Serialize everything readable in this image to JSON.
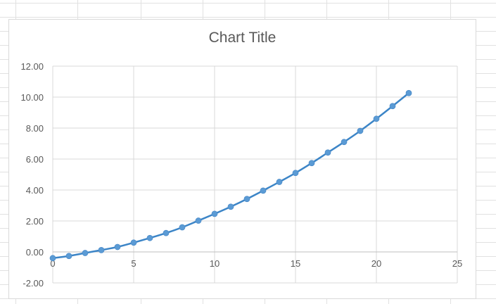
{
  "chart_data": {
    "type": "scatter",
    "title": "Chart Title",
    "xlabel": "",
    "ylabel": "",
    "xlim": [
      0,
      25
    ],
    "ylim": [
      -2,
      12
    ],
    "xticks": [
      0,
      5,
      10,
      15,
      20,
      25
    ],
    "yticks": [
      -2,
      0,
      2,
      4,
      6,
      8,
      10,
      12
    ],
    "xtick_labels": [
      "0",
      "5",
      "10",
      "15",
      "20",
      "25"
    ],
    "ytick_labels": [
      "-2.00",
      "0.00",
      "2.00",
      "4.00",
      "6.00",
      "8.00",
      "10.00",
      "12.00"
    ],
    "grid": true,
    "legend": "none",
    "series": [
      {
        "color": "#5b9bd5",
        "line_color": "#3c85c7",
        "markers": true,
        "smooth": true,
        "x": [
          0,
          1,
          2,
          3,
          4,
          5,
          6,
          7,
          8,
          9,
          10,
          11,
          12,
          13,
          14,
          15,
          16,
          17,
          18,
          19,
          20,
          21,
          22
        ],
        "y": [
          -0.4,
          -0.26,
          -0.07,
          0.12,
          0.32,
          0.6,
          0.9,
          1.22,
          1.59,
          2.02,
          2.46,
          2.92,
          3.42,
          3.96,
          4.52,
          5.1,
          5.74,
          6.42,
          7.1,
          7.82,
          8.6,
          9.42,
          10.26
        ]
      }
    ]
  }
}
